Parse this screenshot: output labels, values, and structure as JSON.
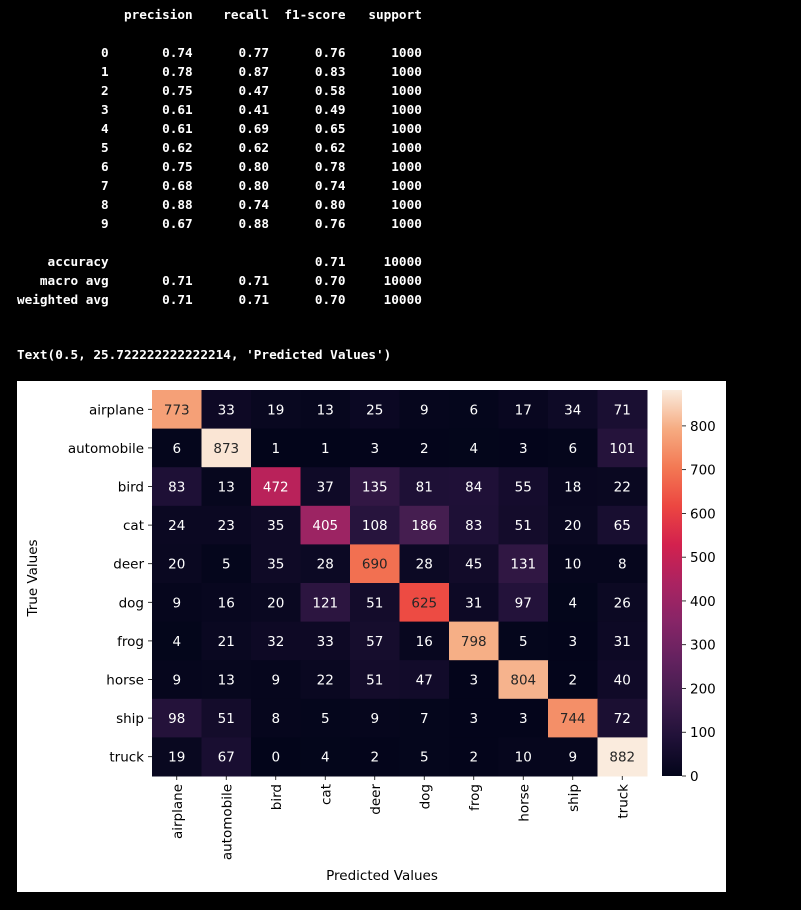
{
  "report": {
    "header": "              precision    recall  f1-score   support",
    "rows": [
      "           0       0.74      0.77      0.76      1000",
      "           1       0.78      0.87      0.83      1000",
      "           2       0.75      0.47      0.58      1000",
      "           3       0.61      0.41      0.49      1000",
      "           4       0.61      0.69      0.65      1000",
      "           5       0.62      0.62      0.62      1000",
      "           6       0.75      0.80      0.78      1000",
      "           7       0.68      0.80      0.74      1000",
      "           8       0.88      0.74      0.80      1000",
      "           9       0.67      0.88      0.76      1000"
    ],
    "summary": [
      "    accuracy                           0.71     10000",
      "   macro avg       0.71      0.71      0.70     10000",
      "weighted avg       0.71      0.71      0.70     10000"
    ]
  },
  "output_text": "Text(0.5, 25.722222222222214, 'Predicted Values')",
  "chart_data": {
    "type": "heatmap",
    "title": "",
    "xlabel": "Predicted Values",
    "ylabel": "True Values",
    "x_categories": [
      "airplane",
      "automobile",
      "bird",
      "cat",
      "deer",
      "dog",
      "frog",
      "horse",
      "ship",
      "truck"
    ],
    "y_categories": [
      "airplane",
      "automobile",
      "bird",
      "cat",
      "deer",
      "dog",
      "frog",
      "horse",
      "ship",
      "truck"
    ],
    "values": [
      [
        773,
        33,
        19,
        13,
        25,
        9,
        6,
        17,
        34,
        71
      ],
      [
        6,
        873,
        1,
        1,
        3,
        2,
        4,
        3,
        6,
        101
      ],
      [
        83,
        13,
        472,
        37,
        135,
        81,
        84,
        55,
        18,
        22
      ],
      [
        24,
        23,
        35,
        405,
        108,
        186,
        83,
        51,
        20,
        65
      ],
      [
        20,
        5,
        35,
        28,
        690,
        28,
        45,
        131,
        10,
        8
      ],
      [
        9,
        16,
        20,
        121,
        51,
        625,
        31,
        97,
        4,
        26
      ],
      [
        4,
        21,
        32,
        33,
        57,
        16,
        798,
        5,
        3,
        31
      ],
      [
        9,
        13,
        9,
        22,
        51,
        47,
        3,
        804,
        2,
        40
      ],
      [
        98,
        51,
        8,
        5,
        9,
        7,
        3,
        3,
        744,
        72
      ],
      [
        19,
        67,
        0,
        4,
        2,
        5,
        2,
        10,
        9,
        882
      ]
    ],
    "colormap": "rocket",
    "vmin": 0,
    "vmax": 882,
    "colorbar_ticks": [
      0,
      100,
      200,
      300,
      400,
      500,
      600,
      700,
      800
    ],
    "annotations": true
  }
}
